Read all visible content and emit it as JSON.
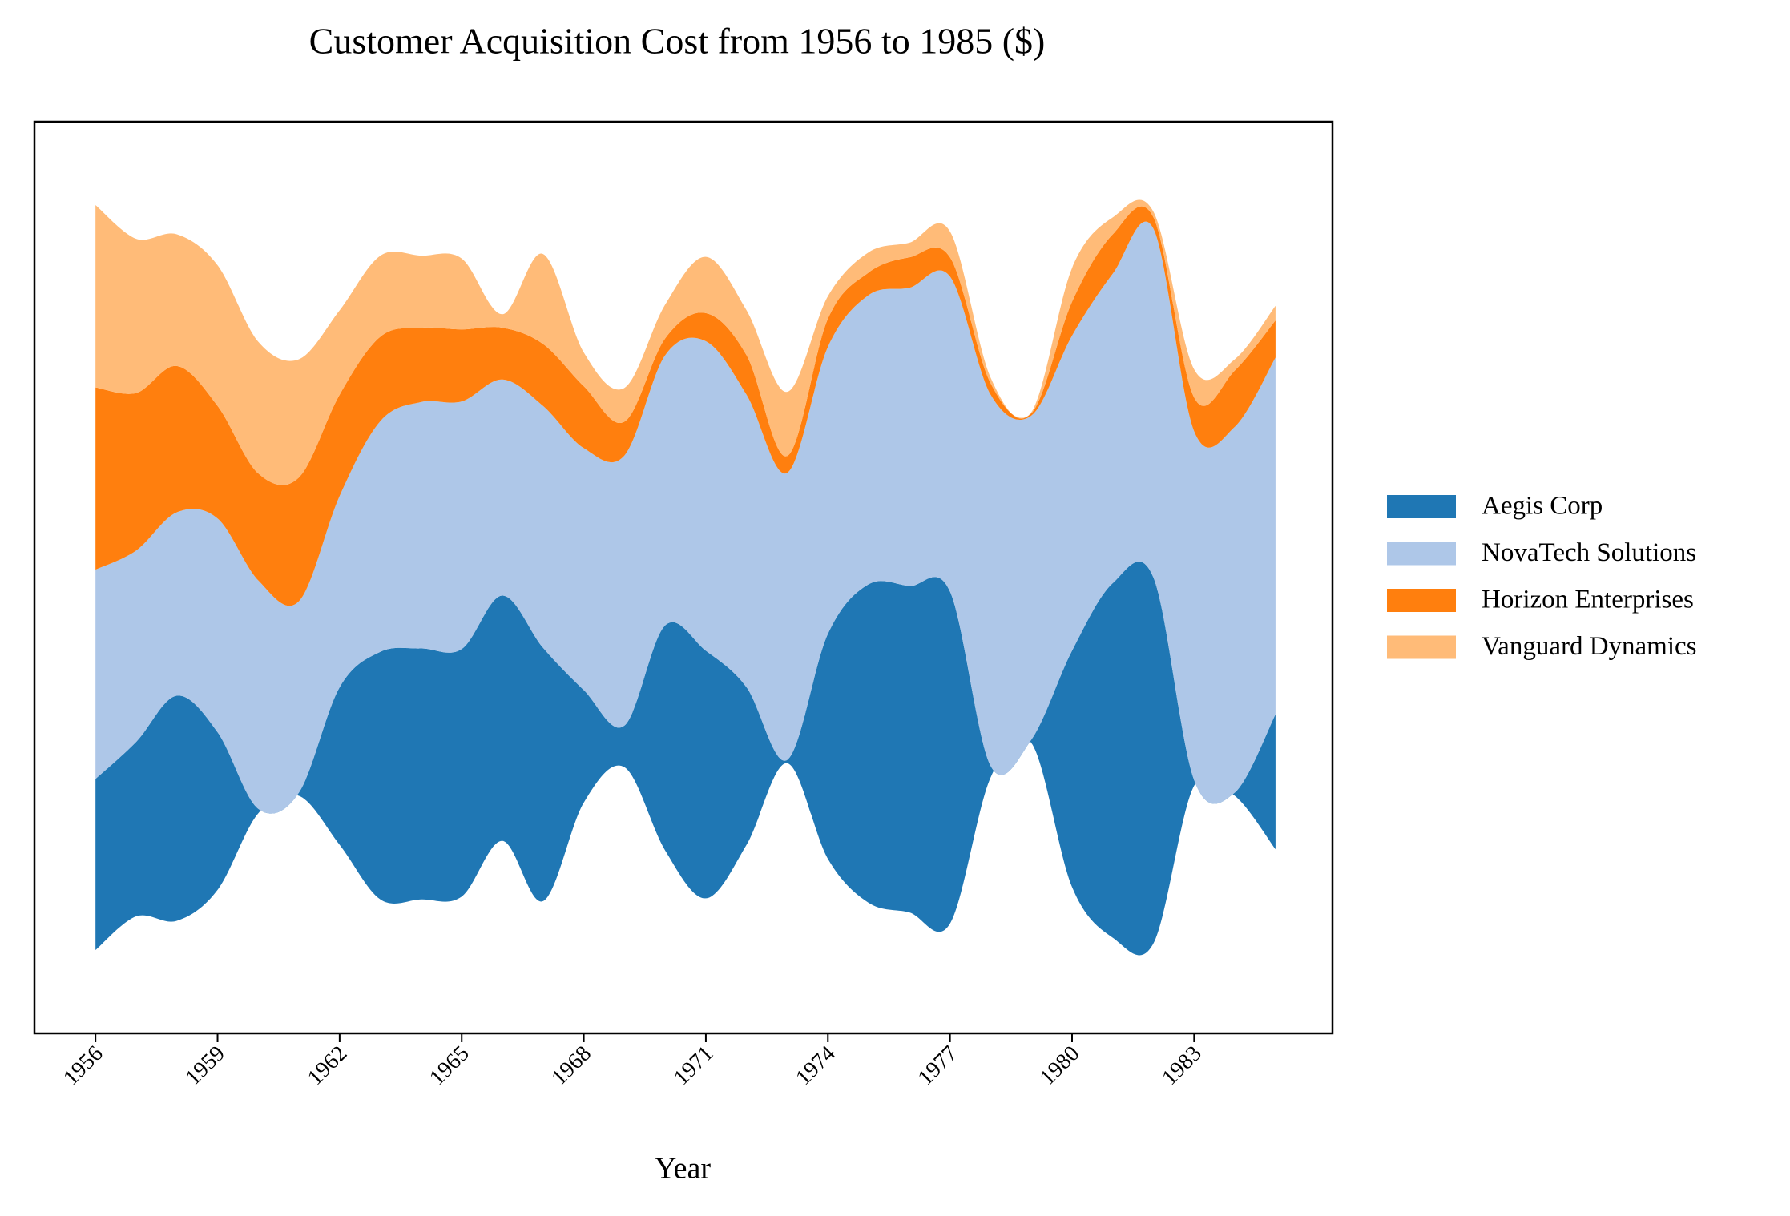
{
  "chart_data": {
    "type": "streamgraph",
    "title": "Customer Acquisition Cost from 1956 to 1985 ($)",
    "xlabel": "Year",
    "x": [
      1956,
      1957,
      1958,
      1959,
      1960,
      1961,
      1962,
      1963,
      1964,
      1965,
      1966,
      1967,
      1968,
      1969,
      1970,
      1971,
      1972,
      1973,
      1974,
      1975,
      1976,
      1977,
      1978,
      1979,
      1980,
      1981,
      1982,
      1983,
      1984,
      1985
    ],
    "xlim": [
      1954.5,
      1986.4
    ],
    "xticks": [
      1956,
      1959,
      1962,
      1965,
      1968,
      1971,
      1974,
      1977,
      1980,
      1983
    ],
    "ylim": [
      -405,
      405
    ],
    "baseline": "sym",
    "legend": "center right outside",
    "series": [
      {
        "name": "Aegis Corp",
        "color": "#1f77b4",
        "values": [
          152,
          155,
          200,
          140,
          4,
          3,
          140,
          220,
          223,
          220,
          218,
          225,
          100,
          37,
          200,
          220,
          140,
          3,
          200,
          283,
          290,
          295,
          10,
          3,
          210,
          315,
          325,
          5,
          3,
          120
        ]
      },
      {
        "name": "NovaTech Solutions",
        "color": "#aec7e8",
        "values": [
          186,
          170,
          163,
          190,
          203,
          170,
          170,
          205,
          219,
          220,
          192,
          215,
          215,
          240,
          240,
          275,
          260,
          255,
          255,
          257,
          265,
          280,
          330,
          288,
          280,
          275,
          310,
          310,
          325,
          317
        ]
      },
      {
        "name": "Horizon Enterprises",
        "color": "#ff7f0e",
        "values": [
          162,
          140,
          130,
          100,
          95,
          110,
          90,
          75,
          66,
          64,
          46,
          55,
          55,
          30,
          15,
          25,
          35,
          15,
          25,
          20,
          27,
          17,
          10,
          2,
          30,
          35,
          10,
          30,
          50,
          33
        ]
      },
      {
        "name": "Vanguard Dynamics",
        "color": "#ffbb78",
        "values": [
          162,
          137,
          117,
          125,
          117,
          105,
          75,
          72,
          64,
          63,
          12,
          80,
          30,
          30,
          30,
          50,
          40,
          57,
          20,
          18,
          13,
          23,
          5,
          1,
          30,
          15,
          5,
          25,
          10,
          13
        ]
      }
    ]
  }
}
